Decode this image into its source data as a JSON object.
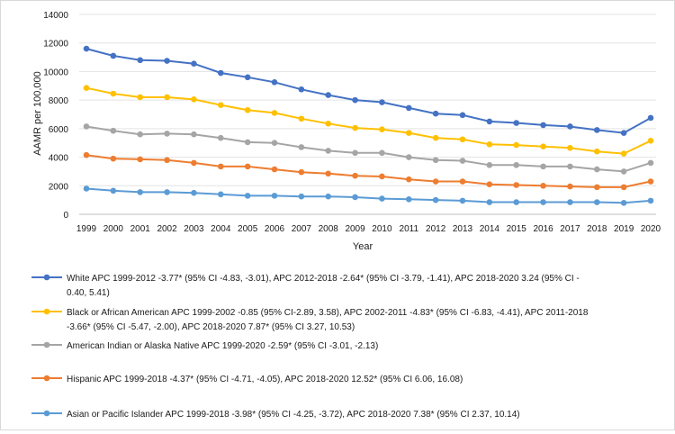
{
  "chart_data": {
    "type": "line",
    "title": "",
    "xlabel": "Year",
    "ylabel": "AAMR per 100,000",
    "ylim": [
      0,
      14000
    ],
    "yticks": [
      0,
      2000,
      4000,
      6000,
      8000,
      10000,
      12000,
      14000
    ],
    "ytick_labels": [
      "0",
      "2000",
      "4000",
      "6000",
      "8000",
      "10000",
      "12000",
      "14000"
    ],
    "grid": true,
    "legend_position": "bottom",
    "categories": [
      "1999",
      "2000",
      "2001",
      "2002",
      "2003",
      "2004",
      "2005",
      "2006",
      "2007",
      "2008",
      "2009",
      "2010",
      "2011",
      "2012",
      "2013",
      "2014",
      "2015",
      "2016",
      "2017",
      "2018",
      "2019",
      "2020"
    ],
    "series": [
      {
        "name": "White",
        "color": "#4472C4",
        "legend_lines": [
          "White APC 1999-2012 -3.77* (95% CI -4.83, -3.01), APC 2012-2018 -2.64* (95% CI -3.79, -1.41), APC 2018-2020 3.24 (95% CI -",
          "0.40, 5.41)"
        ],
        "values": [
          11600,
          11100,
          10800,
          10750,
          10550,
          9900,
          9600,
          9250,
          8750,
          8350,
          8000,
          7850,
          7450,
          7050,
          6950,
          6500,
          6400,
          6250,
          6150,
          5900,
          5700,
          6750
        ]
      },
      {
        "name": "Black or African American",
        "color": "#FFC000",
        "legend_lines": [
          "Black or African American APC 1999-2002 -0.85 (95% CI-2.89, 3.58), APC 2002-2011 -4.83* (95% CI -6.83, -4.41), APC 2011-2018",
          "-3.66* (95% CI -5.47, -2.00), APC 2018-2020 7.87* (95% CI 3.27, 10.53)"
        ],
        "values": [
          8850,
          8450,
          8200,
          8200,
          8050,
          7650,
          7300,
          7100,
          6700,
          6350,
          6050,
          5950,
          5700,
          5350,
          5250,
          4900,
          4850,
          4750,
          4650,
          4400,
          4250,
          5150
        ]
      },
      {
        "name": "American Indian or Alaska Native",
        "color": "#A5A5A5",
        "legend_lines": [
          "American Indian or Alaska Native APC 1999-2020 -2.59* (95% CI -3.01, -2.13)"
        ],
        "values": [
          6150,
          5850,
          5600,
          5650,
          5600,
          5350,
          5050,
          5000,
          4700,
          4450,
          4300,
          4300,
          4000,
          3800,
          3750,
          3450,
          3450,
          3350,
          3350,
          3150,
          3000,
          3600
        ]
      },
      {
        "name": "Hispanic",
        "color": "#ED7D31",
        "legend_lines": [
          "Hispanic APC 1999-2018 -4.37* (95% CI -4.71, -4.05), APC 2018-2020 12.52* (95% CI 6.06, 16.08)"
        ],
        "values": [
          4150,
          3900,
          3850,
          3800,
          3600,
          3350,
          3350,
          3150,
          2950,
          2850,
          2700,
          2650,
          2450,
          2300,
          2300,
          2100,
          2050,
          2000,
          1950,
          1900,
          1900,
          2300
        ]
      },
      {
        "name": "Asian or Pacific Islander",
        "color": "#5B9BD5",
        "legend_lines": [
          "Asian or Pacific Islander APC 1999-2018 -3.98* (95% CI -4.25, -3.72), APC 2018-2020 7.38* (95% CI 2.37, 10.14)"
        ],
        "values": [
          1800,
          1650,
          1550,
          1550,
          1500,
          1400,
          1300,
          1300,
          1250,
          1250,
          1200,
          1100,
          1050,
          1000,
          950,
          850,
          850,
          850,
          850,
          850,
          800,
          950
        ]
      }
    ]
  }
}
